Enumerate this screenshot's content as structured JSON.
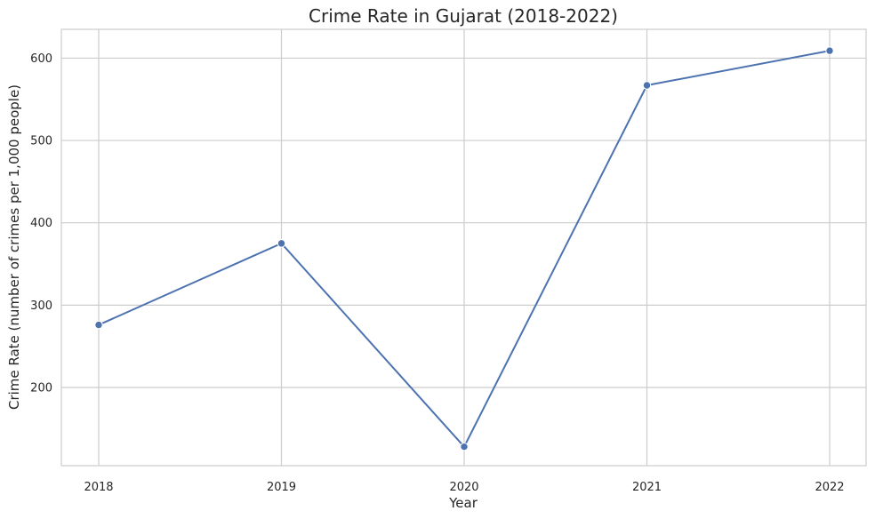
{
  "chart_data": {
    "type": "line",
    "title": "Crime Rate in Gujarat (2018-2022)",
    "xlabel": "Year",
    "ylabel": "Crime Rate (number of crimes per 1,000 people)",
    "categories": [
      "2018",
      "2019",
      "2020",
      "2021",
      "2022"
    ],
    "series": [
      {
        "values": [
          276,
          375,
          128,
          567,
          609
        ],
        "color": "#4c72b0",
        "marker": "circle"
      }
    ],
    "ylim": [
      105,
      635
    ],
    "yticks": [
      200,
      300,
      400,
      500,
      600
    ],
    "grid": true,
    "legend": "none"
  }
}
